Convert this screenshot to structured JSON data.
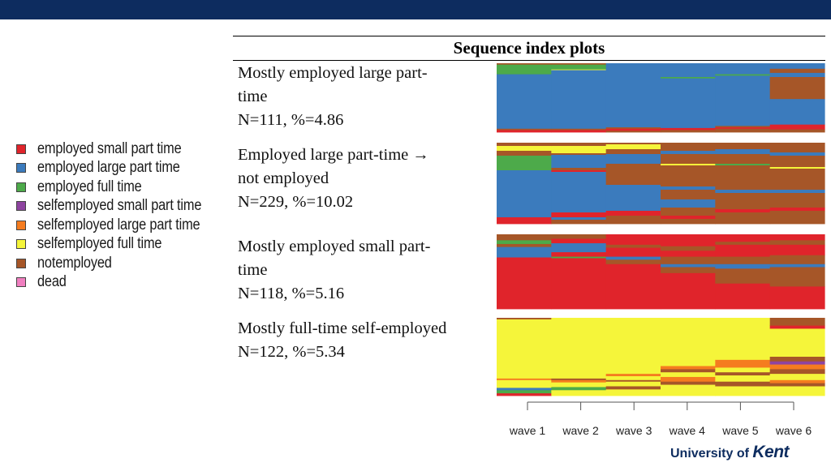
{
  "chart_data": {
    "type": "heatmap",
    "title": "Sequence index plots",
    "x_categories": [
      "wave 1",
      "wave 2",
      "wave 3",
      "wave 4",
      "wave 5",
      "wave 6"
    ],
    "legend_placement": "left",
    "states": [
      {
        "key": "esp",
        "label": "employed small part time",
        "color": "#e0242b"
      },
      {
        "key": "elp",
        "label": "employed large part time",
        "color": "#3b7bbd"
      },
      {
        "key": "eft",
        "label": "employed full time",
        "color": "#4daa4a"
      },
      {
        "key": "ssp",
        "label": "selfemployed small part time",
        "color": "#8e44a0"
      },
      {
        "key": "slp",
        "label": "selfemployed large part time",
        "color": "#f57c1f"
      },
      {
        "key": "sft",
        "label": "selfemployed full time",
        "color": "#f5f53a"
      },
      {
        "key": "ne",
        "label": "notemployed",
        "color": "#a65628"
      },
      {
        "key": "dead",
        "label": "dead",
        "color": "#f07fc0"
      }
    ],
    "clusters": [
      {
        "lines": [
          "Mostly employed large part-",
          "time",
          "N=111, %=4.86"
        ],
        "n": 111,
        "percent": 4.86,
        "waves": [
          [
            [
              "ne",
              0.02
            ],
            [
              "eft",
              0.14
            ],
            [
              "elp",
              0.79
            ],
            [
              "ne",
              0.02
            ],
            [
              "esp",
              0.03
            ]
          ],
          [
            [
              "ne",
              0.02
            ],
            [
              "eft",
              0.07
            ],
            [
              "sft",
              0.01
            ],
            [
              "elp",
              0.85
            ],
            [
              "ne",
              0.02
            ],
            [
              "esp",
              0.03
            ]
          ],
          [
            [
              "elp",
              0.93
            ],
            [
              "ne",
              0.02
            ],
            [
              "esp",
              0.03
            ],
            [
              "ne",
              0.02
            ]
          ],
          [
            [
              "elp",
              0.2
            ],
            [
              "eft",
              0.02
            ],
            [
              "elp",
              0.72
            ],
            [
              "esp",
              0.03
            ],
            [
              "ne",
              0.03
            ]
          ],
          [
            [
              "elp",
              0.16
            ],
            [
              "eft",
              0.02
            ],
            [
              "elp",
              0.73
            ],
            [
              "ne",
              0.02
            ],
            [
              "esp",
              0.02
            ],
            [
              "ne",
              0.05
            ]
          ],
          [
            [
              "elp",
              0.08
            ],
            [
              "ne",
              0.06
            ],
            [
              "elp",
              0.06
            ],
            [
              "ne",
              0.32
            ],
            [
              "elp",
              0.37
            ],
            [
              "esp",
              0.07
            ],
            [
              "ne",
              0.04
            ]
          ]
        ]
      },
      {
        "lines": [
          "Employed large part-time →",
          "not employed",
          "N=229, %=10.02"
        ],
        "n": 229,
        "percent": 10.02,
        "waves": [
          [
            [
              "ne",
              0.04
            ],
            [
              "sft",
              0.06
            ],
            [
              "ne",
              0.06
            ],
            [
              "eft",
              0.18
            ],
            [
              "elp",
              0.58
            ],
            [
              "esp",
              0.08
            ]
          ],
          [
            [
              "ne",
              0.04
            ],
            [
              "sft",
              0.09
            ],
            [
              "ne",
              0.02
            ],
            [
              "elp",
              0.16
            ],
            [
              "ne",
              0.03
            ],
            [
              "esp",
              0.02
            ],
            [
              "elp",
              0.5
            ],
            [
              "esp",
              0.06
            ],
            [
              "elp",
              0.03
            ],
            [
              "ne",
              0.05
            ]
          ],
          [
            [
              "ne",
              0.02
            ],
            [
              "sft",
              0.06
            ],
            [
              "ne",
              0.06
            ],
            [
              "elp",
              0.12
            ],
            [
              "ne",
              0.26
            ],
            [
              "elp",
              0.32
            ],
            [
              "esp",
              0.06
            ],
            [
              "ne",
              0.1
            ]
          ],
          [
            [
              "ne",
              0.1
            ],
            [
              "elp",
              0.04
            ],
            [
              "ne",
              0.12
            ],
            [
              "sft",
              0.02
            ],
            [
              "ne",
              0.26
            ],
            [
              "elp",
              0.04
            ],
            [
              "ne",
              0.12
            ],
            [
              "elp",
              0.1
            ],
            [
              "ne",
              0.1
            ],
            [
              "esp",
              0.04
            ],
            [
              "ne",
              0.06
            ]
          ],
          [
            [
              "ne",
              0.08
            ],
            [
              "elp",
              0.06
            ],
            [
              "ne",
              0.12
            ],
            [
              "eft",
              0.02
            ],
            [
              "ne",
              0.3
            ],
            [
              "elp",
              0.04
            ],
            [
              "ne",
              0.2
            ],
            [
              "esp",
              0.04
            ],
            [
              "ne",
              0.14
            ]
          ],
          [
            [
              "ne",
              0.12
            ],
            [
              "elp",
              0.04
            ],
            [
              "ne",
              0.14
            ],
            [
              "sft",
              0.02
            ],
            [
              "ne",
              0.26
            ],
            [
              "elp",
              0.04
            ],
            [
              "ne",
              0.18
            ],
            [
              "esp",
              0.04
            ],
            [
              "ne",
              0.16
            ]
          ]
        ]
      },
      {
        "lines": [
          "Mostly employed small part-",
          "time",
          "N=118, %=5.16"
        ],
        "n": 118,
        "percent": 5.16,
        "waves": [
          [
            [
              "ne",
              0.08
            ],
            [
              "eft",
              0.05
            ],
            [
              "ne",
              0.04
            ],
            [
              "elp",
              0.14
            ],
            [
              "esp",
              0.69
            ]
          ],
          [
            [
              "ne",
              0.06
            ],
            [
              "esp",
              0.06
            ],
            [
              "elp",
              0.12
            ],
            [
              "esp",
              0.06
            ],
            [
              "eft",
              0.02
            ],
            [
              "esp",
              0.68
            ]
          ],
          [
            [
              "esp",
              0.14
            ],
            [
              "ne",
              0.04
            ],
            [
              "esp",
              0.12
            ],
            [
              "elp",
              0.04
            ],
            [
              "ne",
              0.06
            ],
            [
              "esp",
              0.6
            ]
          ],
          [
            [
              "esp",
              0.16
            ],
            [
              "ne",
              0.06
            ],
            [
              "esp",
              0.08
            ],
            [
              "ne",
              0.1
            ],
            [
              "elp",
              0.04
            ],
            [
              "ne",
              0.08
            ],
            [
              "esp",
              0.48
            ]
          ],
          [
            [
              "esp",
              0.1
            ],
            [
              "ne",
              0.04
            ],
            [
              "esp",
              0.16
            ],
            [
              "ne",
              0.1
            ],
            [
              "elp",
              0.06
            ],
            [
              "ne",
              0.2
            ],
            [
              "esp",
              0.34
            ]
          ],
          [
            [
              "esp",
              0.08
            ],
            [
              "ne",
              0.06
            ],
            [
              "esp",
              0.14
            ],
            [
              "ne",
              0.12
            ],
            [
              "elp",
              0.04
            ],
            [
              "ne",
              0.26
            ],
            [
              "esp",
              0.3
            ]
          ]
        ]
      },
      {
        "lines": [
          "Mostly full-time self-employed",
          "N=122, %=5.34"
        ],
        "n": 122,
        "percent": 5.34,
        "waves": [
          [
            [
              "ne",
              0.02
            ],
            [
              "sft",
              0.76
            ],
            [
              "slp",
              0.02
            ],
            [
              "sft",
              0.1
            ],
            [
              "elp",
              0.03
            ],
            [
              "eft",
              0.04
            ],
            [
              "esp",
              0.03
            ]
          ],
          [
            [
              "sft",
              0.78
            ],
            [
              "ne",
              0.02
            ],
            [
              "slp",
              0.03
            ],
            [
              "sft",
              0.06
            ],
            [
              "eft",
              0.04
            ],
            [
              "sft",
              0.07
            ]
          ],
          [
            [
              "sft",
              0.72
            ],
            [
              "slp",
              0.03
            ],
            [
              "sft",
              0.05
            ],
            [
              "ne",
              0.02
            ],
            [
              "sft",
              0.06
            ],
            [
              "ne",
              0.04
            ],
            [
              "sft",
              0.08
            ]
          ],
          [
            [
              "sft",
              0.62
            ],
            [
              "slp",
              0.04
            ],
            [
              "ne",
              0.04
            ],
            [
              "sft",
              0.06
            ],
            [
              "slp",
              0.06
            ],
            [
              "ne",
              0.04
            ],
            [
              "sft",
              0.14
            ]
          ],
          [
            [
              "sft",
              0.54
            ],
            [
              "slp",
              0.1
            ],
            [
              "sft",
              0.06
            ],
            [
              "ne",
              0.04
            ],
            [
              "sft",
              0.08
            ],
            [
              "ne",
              0.06
            ],
            [
              "sft",
              0.12
            ]
          ],
          [
            [
              "ne",
              0.1
            ],
            [
              "esp",
              0.04
            ],
            [
              "sft",
              0.36
            ],
            [
              "ne",
              0.06
            ],
            [
              "ssp",
              0.04
            ],
            [
              "slp",
              0.06
            ],
            [
              "ne",
              0.06
            ],
            [
              "sft",
              0.08
            ],
            [
              "slp",
              0.04
            ],
            [
              "ne",
              0.04
            ],
            [
              "sft",
              0.12
            ]
          ]
        ]
      }
    ]
  },
  "footer": {
    "org_prefix": "University of ",
    "org_name": "Kent"
  }
}
